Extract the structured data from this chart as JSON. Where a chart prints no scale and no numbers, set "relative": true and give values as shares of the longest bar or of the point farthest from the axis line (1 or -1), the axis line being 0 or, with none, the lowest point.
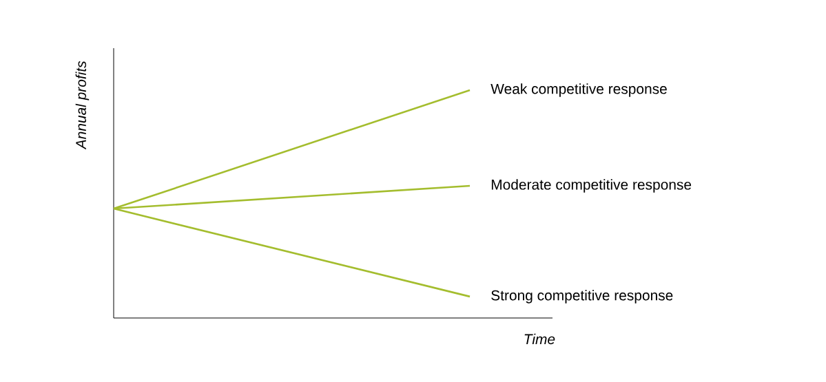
{
  "chart_data": {
    "type": "line",
    "relative": true,
    "xlabel": "Time",
    "ylabel": "Annual profits",
    "categories": [
      null,
      null
    ],
    "series": [
      {
        "name": "Weak competitive response",
        "color": "#a4bd2e",
        "values": [
          0.48,
          1
        ]
      },
      {
        "name": "Moderate competitive response",
        "color": "#a4bd2e",
        "values": [
          0.48,
          0.58
        ]
      },
      {
        "name": "Strong competitive response",
        "color": "#a4bd2e",
        "values": [
          0.48,
          0.094
        ]
      }
    ]
  }
}
